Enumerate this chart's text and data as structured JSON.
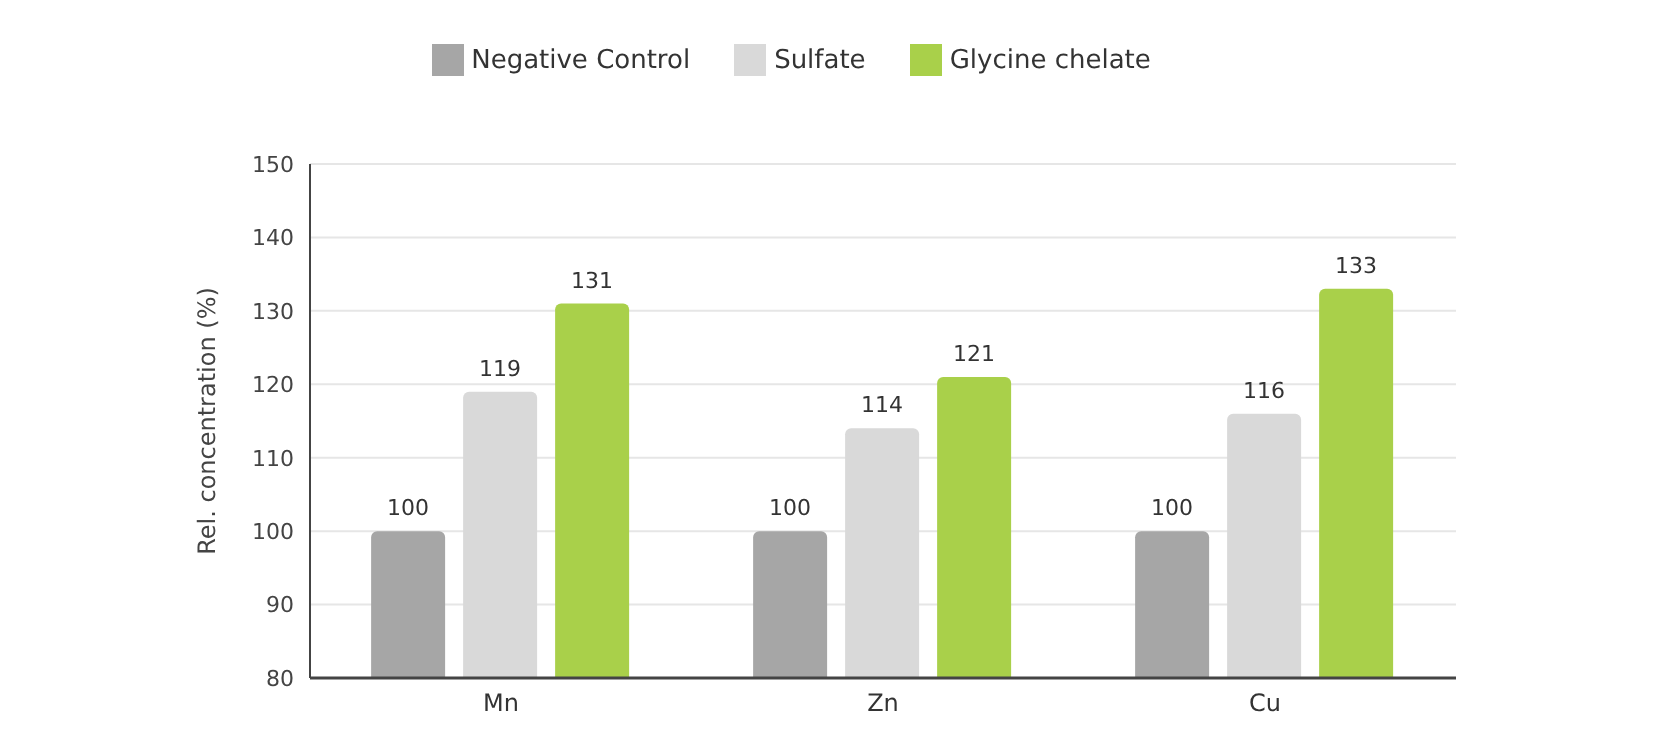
{
  "chart_data": {
    "type": "bar",
    "categories": [
      "Mn",
      "Zn",
      "Cu"
    ],
    "series": [
      {
        "name": "Negative Control",
        "color": "#a6a6a6",
        "values": [
          100,
          100,
          100
        ]
      },
      {
        "name": "Sulfate",
        "color": "#d9d9d9",
        "values": [
          119,
          114,
          116
        ]
      },
      {
        "name": "Glycine chelate",
        "color": "#a9d04a",
        "values": [
          131,
          121,
          133
        ]
      }
    ],
    "ylabel": "Rel. concentration (%)",
    "ylim": [
      80,
      150
    ],
    "yticks": [
      80,
      90,
      100,
      110,
      120,
      130,
      140,
      150
    ],
    "grid": "y",
    "legend": "top",
    "data_labels": true
  }
}
